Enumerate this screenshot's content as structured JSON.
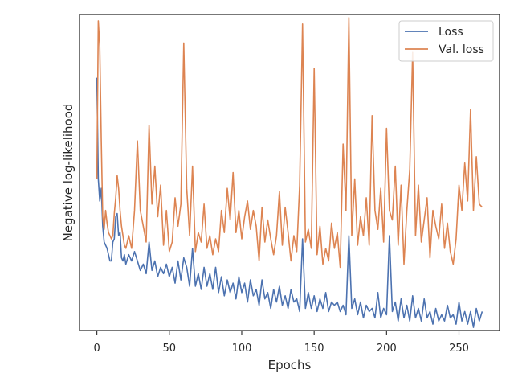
{
  "chart_data": {
    "type": "line",
    "xlabel": "Epochs",
    "ylabel": "Negative log-likelihood",
    "xlim": [
      -12,
      278
    ],
    "ylim": [
      0.0,
      1.0
    ],
    "x_ticks": [
      0,
      50,
      100,
      150,
      200,
      250
    ],
    "y_ticks_shown": false,
    "grid": false,
    "legend_position": "top-right",
    "series": [
      {
        "name": "Loss",
        "color": "#4c72b0",
        "x": [
          0,
          1,
          2,
          3,
          4,
          5,
          6,
          7,
          8,
          9,
          10,
          11,
          12,
          13,
          14,
          15,
          16,
          17,
          18,
          19,
          20,
          22,
          24,
          26,
          28,
          30,
          32,
          34,
          36,
          38,
          40,
          42,
          44,
          46,
          48,
          50,
          52,
          54,
          56,
          58,
          60,
          62,
          64,
          66,
          68,
          70,
          72,
          74,
          76,
          78,
          80,
          82,
          84,
          86,
          88,
          90,
          92,
          94,
          96,
          98,
          100,
          102,
          104,
          106,
          108,
          110,
          112,
          114,
          116,
          118,
          120,
          122,
          124,
          126,
          128,
          130,
          132,
          134,
          136,
          138,
          140,
          142,
          144,
          146,
          148,
          150,
          152,
          154,
          156,
          158,
          160,
          162,
          164,
          166,
          168,
          170,
          172,
          174,
          176,
          178,
          180,
          182,
          184,
          186,
          188,
          190,
          192,
          194,
          196,
          198,
          200,
          202,
          204,
          206,
          208,
          210,
          212,
          214,
          216,
          218,
          220,
          222,
          224,
          226,
          228,
          230,
          232,
          234,
          236,
          238,
          240,
          242,
          244,
          246,
          248,
          250,
          252,
          254,
          256,
          258,
          260,
          262,
          264,
          266
        ],
        "values": [
          0.8,
          0.48,
          0.41,
          0.45,
          0.33,
          0.28,
          0.27,
          0.26,
          0.24,
          0.22,
          0.22,
          0.28,
          0.29,
          0.36,
          0.37,
          0.3,
          0.31,
          0.23,
          0.22,
          0.24,
          0.21,
          0.24,
          0.22,
          0.25,
          0.22,
          0.19,
          0.21,
          0.18,
          0.28,
          0.19,
          0.22,
          0.17,
          0.2,
          0.18,
          0.21,
          0.17,
          0.2,
          0.15,
          0.22,
          0.16,
          0.23,
          0.2,
          0.14,
          0.26,
          0.14,
          0.18,
          0.13,
          0.2,
          0.14,
          0.18,
          0.13,
          0.2,
          0.12,
          0.17,
          0.11,
          0.16,
          0.12,
          0.15,
          0.1,
          0.17,
          0.12,
          0.15,
          0.09,
          0.16,
          0.11,
          0.13,
          0.08,
          0.16,
          0.1,
          0.12,
          0.07,
          0.13,
          0.09,
          0.14,
          0.08,
          0.11,
          0.07,
          0.13,
          0.09,
          0.1,
          0.06,
          0.29,
          0.07,
          0.12,
          0.07,
          0.11,
          0.06,
          0.1,
          0.07,
          0.12,
          0.06,
          0.09,
          0.08,
          0.09,
          0.06,
          0.08,
          0.05,
          0.3,
          0.07,
          0.1,
          0.05,
          0.09,
          0.04,
          0.08,
          0.06,
          0.07,
          0.04,
          0.12,
          0.04,
          0.07,
          0.05,
          0.3,
          0.06,
          0.09,
          0.03,
          0.1,
          0.04,
          0.08,
          0.03,
          0.11,
          0.04,
          0.07,
          0.03,
          0.1,
          0.04,
          0.06,
          0.02,
          0.07,
          0.03,
          0.05,
          0.03,
          0.08,
          0.04,
          0.05,
          0.02,
          0.09,
          0.03,
          0.06,
          0.02,
          0.06,
          0.01,
          0.07,
          0.03,
          0.06
        ]
      },
      {
        "name": "Val. loss",
        "color": "#dd8452",
        "x": [
          0,
          1,
          2,
          3,
          4,
          5,
          6,
          7,
          8,
          9,
          10,
          11,
          12,
          13,
          14,
          15,
          16,
          17,
          18,
          19,
          20,
          22,
          24,
          26,
          28,
          30,
          32,
          34,
          36,
          38,
          40,
          42,
          44,
          46,
          48,
          50,
          52,
          54,
          56,
          58,
          60,
          62,
          64,
          66,
          68,
          70,
          72,
          74,
          76,
          78,
          80,
          82,
          84,
          86,
          88,
          90,
          92,
          94,
          96,
          98,
          100,
          102,
          104,
          106,
          108,
          110,
          112,
          114,
          116,
          118,
          120,
          122,
          124,
          126,
          128,
          130,
          132,
          134,
          136,
          138,
          140,
          142,
          144,
          146,
          148,
          150,
          152,
          154,
          156,
          158,
          160,
          162,
          164,
          166,
          168,
          170,
          172,
          174,
          176,
          178,
          180,
          182,
          184,
          186,
          188,
          190,
          192,
          194,
          196,
          198,
          200,
          202,
          204,
          206,
          208,
          210,
          212,
          214,
          216,
          218,
          220,
          222,
          224,
          226,
          228,
          230,
          232,
          234,
          236,
          238,
          240,
          242,
          244,
          246,
          248,
          250,
          252,
          254,
          256,
          258,
          260,
          262,
          264,
          266
        ],
        "values": [
          0.48,
          0.98,
          0.9,
          0.6,
          0.36,
          0.32,
          0.38,
          0.34,
          0.31,
          0.3,
          0.29,
          0.3,
          0.37,
          0.42,
          0.49,
          0.45,
          0.38,
          0.33,
          0.3,
          0.27,
          0.26,
          0.3,
          0.26,
          0.38,
          0.6,
          0.38,
          0.33,
          0.28,
          0.65,
          0.4,
          0.52,
          0.36,
          0.46,
          0.27,
          0.38,
          0.25,
          0.28,
          0.42,
          0.33,
          0.4,
          0.91,
          0.45,
          0.3,
          0.52,
          0.25,
          0.31,
          0.28,
          0.4,
          0.26,
          0.3,
          0.24,
          0.29,
          0.25,
          0.38,
          0.31,
          0.45,
          0.35,
          0.5,
          0.31,
          0.38,
          0.29,
          0.36,
          0.41,
          0.32,
          0.38,
          0.33,
          0.22,
          0.39,
          0.28,
          0.35,
          0.29,
          0.24,
          0.3,
          0.44,
          0.27,
          0.39,
          0.31,
          0.22,
          0.3,
          0.25,
          0.46,
          0.97,
          0.28,
          0.32,
          0.26,
          0.83,
          0.24,
          0.33,
          0.21,
          0.26,
          0.22,
          0.34,
          0.26,
          0.31,
          0.2,
          0.59,
          0.38,
          0.99,
          0.3,
          0.48,
          0.27,
          0.36,
          0.3,
          0.42,
          0.27,
          0.68,
          0.38,
          0.32,
          0.45,
          0.28,
          0.64,
          0.38,
          0.35,
          0.52,
          0.27,
          0.46,
          0.21,
          0.38,
          0.51,
          0.88,
          0.3,
          0.46,
          0.28,
          0.35,
          0.42,
          0.23,
          0.38,
          0.33,
          0.29,
          0.4,
          0.26,
          0.34,
          0.25,
          0.21,
          0.29,
          0.46,
          0.38,
          0.53,
          0.41,
          0.7,
          0.38,
          0.55,
          0.4,
          0.39
        ]
      }
    ]
  }
}
